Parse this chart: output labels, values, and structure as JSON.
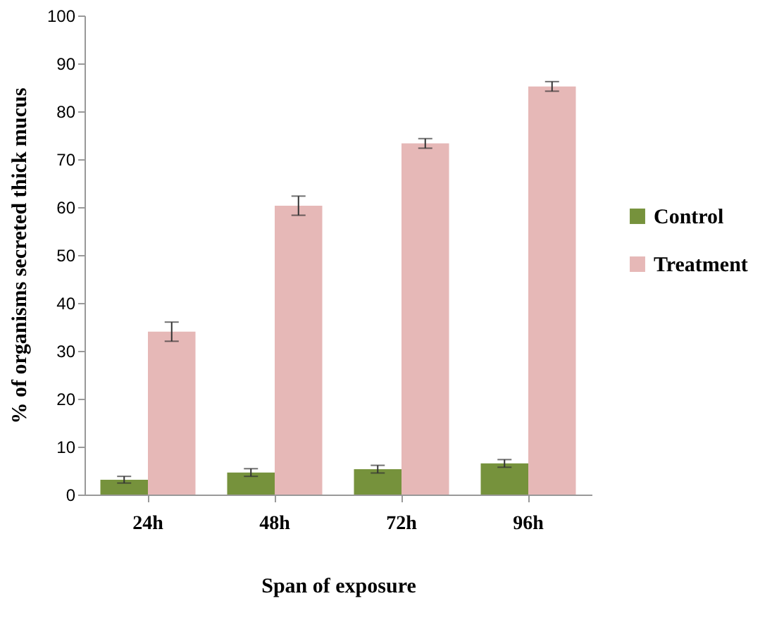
{
  "chart_data": {
    "type": "bar",
    "xlabel": "Span of exposure",
    "ylabel": "% of organisms secreted thick mucus",
    "categories": [
      "24h",
      "48h",
      "72h",
      "96h"
    ],
    "series": [
      {
        "name": "Control",
        "color": "#76923c",
        "values": [
          3.1,
          4.6,
          5.3,
          6.5
        ],
        "errors": [
          0.7,
          0.8,
          0.8,
          0.8
        ]
      },
      {
        "name": "Treatment",
        "color": "#e6b8b7",
        "values": [
          34,
          60.3,
          73.3,
          85.2
        ],
        "errors": [
          2,
          2,
          1,
          1
        ]
      }
    ],
    "ylim": [
      0,
      100
    ],
    "yticks": [
      0,
      10,
      20,
      30,
      40,
      50,
      60,
      70,
      80,
      90,
      100
    ],
    "grid": false,
    "legend": "right"
  }
}
